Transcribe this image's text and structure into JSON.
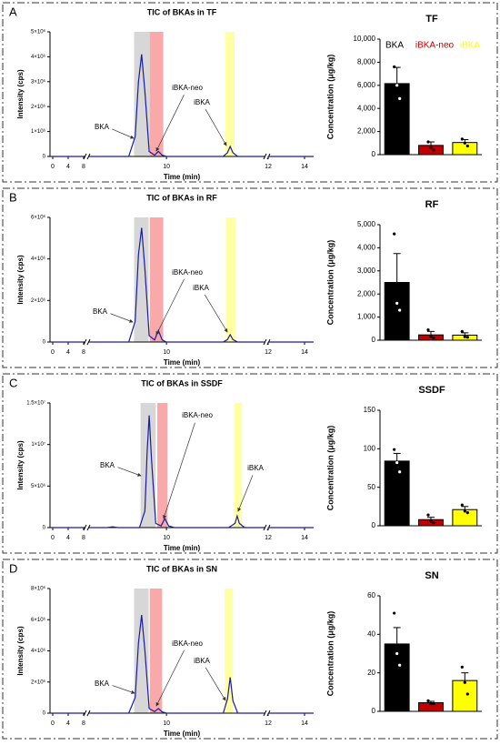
{
  "panels": [
    "A",
    "B",
    "C",
    "D"
  ],
  "chart_data": [
    {
      "type": "line",
      "title": "TIC of BKAs in TF",
      "x_label": "Time (min)",
      "y_label": "Intensity (cps)",
      "line_color": "#1a1aa6",
      "x_segments": [
        [
          0,
          8
        ],
        [
          8.6,
          11.8
        ],
        [
          12,
          14.5
        ]
      ],
      "xticks": [
        0,
        4,
        8,
        10,
        12,
        14
      ],
      "ylim": [
        0,
        5000000
      ],
      "yticks": [
        0,
        {
          "value": 1000000,
          "label": "1×10⁶"
        },
        {
          "value": 2000000,
          "label": "2×10⁶"
        },
        {
          "value": 3000000,
          "label": "3×10⁶"
        },
        {
          "value": 4000000,
          "label": "4×10⁶"
        },
        {
          "value": 5000000,
          "label": "5×10⁶"
        }
      ],
      "bands": [
        {
          "x": [
            9.4,
            9.69
          ],
          "color": "#d3d3d3"
        },
        {
          "x": [
            9.69,
            9.94
          ],
          "color": "#f8a0a0"
        },
        {
          "x": [
            11.09,
            11.26
          ],
          "color": "#ffff99"
        }
      ],
      "annotations": [
        {
          "text": "BKA"
        },
        {
          "text": "iBKA-neo"
        },
        {
          "text": "iBKA"
        }
      ],
      "x": [
        0,
        4,
        8,
        8.3,
        8.6,
        9.3,
        9.42,
        9.48,
        9.54,
        9.6,
        9.68,
        9.78,
        9.85,
        9.92,
        10.0,
        11.05,
        11.13,
        11.18,
        11.23,
        11.32,
        11.8,
        11.9,
        12,
        14.5
      ],
      "values": [
        0,
        0,
        0,
        null,
        0,
        0,
        800000,
        3000000,
        4100000,
        2600000,
        200000,
        50000,
        200000,
        50000,
        0,
        0,
        150000,
        400000,
        150000,
        0,
        0,
        null,
        0,
        0
      ]
    },
    {
      "type": "bar",
      "title": "TF",
      "y_label": "Concentration (μg/kg)",
      "categories": [
        "BKA",
        "iBKA-neo",
        "iBKA"
      ],
      "legend": true,
      "colors": [
        "#000000",
        "#c00000",
        "#ffff00"
      ],
      "ylim": [
        0,
        10000
      ],
      "yticks": [
        0,
        {
          "value": 2000,
          "label": "2,000"
        },
        {
          "value": 4000,
          "label": "4,000"
        },
        {
          "value": 6000,
          "label": "6,000"
        },
        {
          "value": 8000,
          "label": "8,000"
        },
        {
          "value": 10000,
          "label": "10,000"
        }
      ],
      "values": [
        6150,
        800,
        1050
      ],
      "errors": [
        1400,
        300,
        250
      ],
      "points": [
        [
          7600,
          6000,
          4850
        ],
        [
          1100,
          600,
          400
        ],
        [
          1350,
          1000,
          750
        ]
      ]
    },
    {
      "type": "line",
      "title": "TIC of BKAs in RF",
      "x_label": "Time (min)",
      "y_label": "Intensity (cps)",
      "line_color": "#1a1aa6",
      "x_segments": [
        [
          0,
          8
        ],
        [
          8.6,
          11.8
        ],
        [
          12,
          14.5
        ]
      ],
      "xticks": [
        0,
        4,
        8,
        10,
        12,
        14
      ],
      "ylim": [
        0,
        6000000
      ],
      "yticks": [
        0,
        {
          "value": 2000000,
          "label": "2×10⁶"
        },
        {
          "value": 4000000,
          "label": "4×10⁶"
        },
        {
          "value": 6000000,
          "label": "6×10⁶"
        }
      ],
      "bands": [
        {
          "x": [
            9.4,
            9.67
          ],
          "color": "#d3d3d3"
        },
        {
          "x": [
            9.69,
            9.94
          ],
          "color": "#f8a0a0"
        },
        {
          "x": [
            11.1,
            11.28
          ],
          "color": "#ffff99"
        }
      ],
      "annotations": [
        {
          "text": "BKA"
        },
        {
          "text": "iBKA-neo"
        },
        {
          "text": "iBKA"
        }
      ],
      "x": [
        0,
        4,
        8,
        8.3,
        8.6,
        9.3,
        9.42,
        9.48,
        9.54,
        9.6,
        9.68,
        9.78,
        9.85,
        9.92,
        10.0,
        11.05,
        11.13,
        11.18,
        11.23,
        11.32,
        11.8,
        11.9,
        12,
        14.5
      ],
      "values": [
        0,
        0,
        0,
        null,
        0,
        0,
        1000000,
        4200000,
        5500000,
        3500000,
        300000,
        100000,
        550000,
        100000,
        0,
        0,
        120000,
        350000,
        120000,
        0,
        0,
        null,
        0,
        0
      ]
    },
    {
      "type": "bar",
      "title": "RF",
      "y_label": "Concentration (μg/kg)",
      "categories": [
        null,
        null,
        null
      ],
      "legend": false,
      "colors": [
        "#000000",
        "#c00000",
        "#ffff00"
      ],
      "ylim": [
        0,
        5000
      ],
      "yticks": [
        0,
        {
          "value": 1000,
          "label": "1,000"
        },
        {
          "value": 2000,
          "label": "2,000"
        },
        {
          "value": 3000,
          "label": "3,000"
        },
        {
          "value": 4000,
          "label": "4,000"
        },
        {
          "value": 5000,
          "label": "5,000"
        }
      ],
      "values": [
        2500,
        230,
        220
      ],
      "errors": [
        1250,
        150,
        100
      ],
      "points": [
        [
          4600,
          1600,
          1300
        ],
        [
          450,
          150,
          100
        ],
        [
          380,
          150,
          130
        ]
      ]
    },
    {
      "type": "line",
      "title": "TIC of BKAs in SSDF",
      "x_label": "Time (min)",
      "y_label": "Intensity (cps)",
      "line_color": "#1a1aa6",
      "x_segments": [
        [
          0,
          8
        ],
        [
          8.6,
          11.8
        ],
        [
          12,
          14.5
        ]
      ],
      "xticks": [
        0,
        4,
        8,
        10,
        12,
        14
      ],
      "ylim": [
        0,
        15000000
      ],
      "yticks": [
        0,
        {
          "value": 5000000,
          "label": "5×10⁶"
        },
        {
          "value": 10000000,
          "label": "1×10⁷"
        },
        {
          "value": 15000000,
          "label": "1.5×10⁷"
        }
      ],
      "bands": [
        {
          "x": [
            9.52,
            9.8
          ],
          "color": "#d3d3d3"
        },
        {
          "x": [
            9.83,
            10.02
          ],
          "color": "#f8a0a0"
        },
        {
          "x": [
            11.26,
            11.4
          ],
          "color": "#ffff99"
        }
      ],
      "annotations": [
        {
          "text": "BKA"
        },
        {
          "text": "iBKA-neo"
        },
        {
          "text": "iBKA"
        }
      ],
      "x": [
        0,
        4,
        8,
        8.3,
        8.6,
        8.9,
        9.0,
        9.1,
        9.5,
        9.6,
        9.64,
        9.68,
        9.72,
        9.8,
        9.9,
        9.97,
        10.04,
        10.15,
        11.15,
        11.27,
        11.31,
        11.35,
        11.45,
        11.8,
        11.9,
        12,
        14.5
      ],
      "values": [
        0,
        0,
        0,
        null,
        0,
        0,
        100000,
        0,
        0,
        2000000,
        9000000,
        13500000,
        8500000,
        500000,
        200000,
        1100000,
        200000,
        0,
        0,
        500000,
        1400000,
        500000,
        0,
        0,
        null,
        0,
        0
      ]
    },
    {
      "type": "bar",
      "title": "SSDF",
      "y_label": "Concentration (μg/kg)",
      "categories": [
        null,
        null,
        null
      ],
      "legend": false,
      "colors": [
        "#000000",
        "#c00000",
        "#ffff00"
      ],
      "ylim": [
        0,
        150
      ],
      "yticks": [
        0,
        50,
        100,
        150
      ],
      "values": [
        84,
        8,
        21
      ],
      "errors": [
        10,
        3,
        4
      ],
      "points": [
        [
          99,
          82,
          70
        ],
        [
          14,
          6,
          4
        ],
        [
          27,
          19,
          17
        ]
      ]
    },
    {
      "type": "line",
      "title": "TIC of BKAs in SN",
      "x_label": "Time (min)",
      "y_label": "Intensity (cps)",
      "line_color": "#1a1aa6",
      "x_segments": [
        [
          0,
          8
        ],
        [
          8.6,
          11.8
        ],
        [
          12,
          14.5
        ]
      ],
      "xticks": [
        0,
        4,
        8,
        10,
        12,
        14
      ],
      "ylim": [
        0,
        8000000
      ],
      "yticks": [
        0,
        {
          "value": 2000000,
          "label": "2×10⁶"
        },
        {
          "value": 4000000,
          "label": "4×10⁶"
        },
        {
          "value": 6000000,
          "label": "6×10⁶"
        },
        {
          "value": 8000000,
          "label": "8×10⁶"
        }
      ],
      "bands": [
        {
          "x": [
            9.4,
            9.67
          ],
          "color": "#d3d3d3"
        },
        {
          "x": [
            9.69,
            9.92
          ],
          "color": "#f8a0a0"
        },
        {
          "x": [
            11.08,
            11.23
          ],
          "color": "#ffff99"
        }
      ],
      "annotations": [
        {
          "text": "BKA"
        },
        {
          "text": "iBKA-neo"
        },
        {
          "text": "iBKA"
        }
      ],
      "x": [
        0,
        4,
        8,
        8.3,
        8.6,
        9.3,
        9.42,
        9.48,
        9.54,
        9.6,
        9.68,
        9.78,
        9.85,
        9.92,
        10.0,
        11.05,
        11.13,
        11.18,
        11.23,
        11.32,
        11.8,
        11.9,
        12,
        14.5
      ],
      "values": [
        0,
        0,
        0,
        null,
        0,
        0,
        1000000,
        4500000,
        6300000,
        4000000,
        300000,
        100000,
        300000,
        80000,
        0,
        0,
        900000,
        2300000,
        800000,
        0,
        0,
        null,
        0,
        0
      ]
    },
    {
      "type": "bar",
      "title": "SN",
      "y_label": "Concentration (μg/kg)",
      "categories": [
        null,
        null,
        null
      ],
      "legend": false,
      "colors": [
        "#000000",
        "#c00000",
        "#ffff00"
      ],
      "ylim": [
        0,
        60
      ],
      "yticks": [
        0,
        20,
        40,
        60
      ],
      "values": [
        35,
        4.5,
        16
      ],
      "errors": [
        8.5,
        0.7,
        4
      ],
      "points": [
        [
          51,
          30,
          24
        ],
        [
          5.5,
          4,
          4
        ],
        [
          23,
          15,
          9
        ]
      ]
    }
  ]
}
